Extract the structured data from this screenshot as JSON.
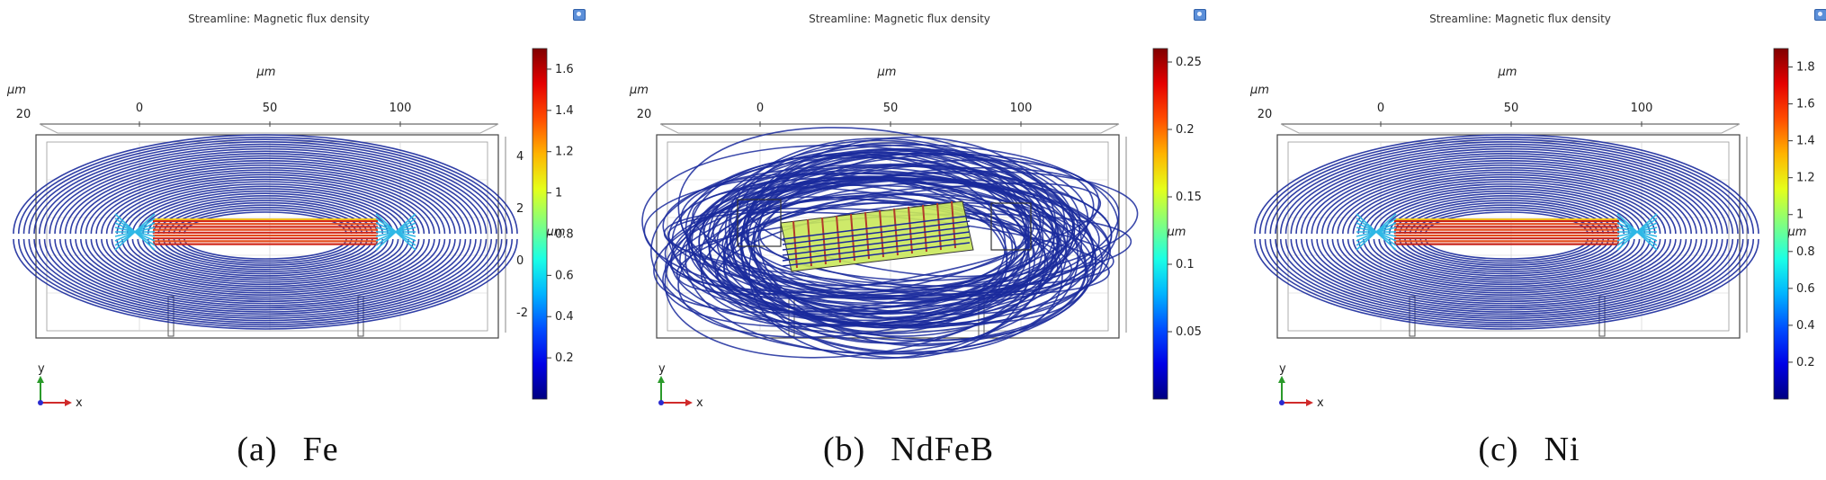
{
  "panels": [
    {
      "id": "a",
      "title": "Streamline: Magnetic flux density",
      "caption_label": "(a)",
      "caption_name": "Fe",
      "axis_unit": "µm",
      "x_ticks": [
        "0",
        "50",
        "100"
      ],
      "corner_tick": "20",
      "y_ticks": [
        "4",
        "2",
        "0",
        "-2"
      ],
      "colorbar": {
        "ticks": [
          "1.6",
          "1.4",
          "1.2",
          "1",
          "0.8",
          "0.6",
          "0.4",
          "0.2"
        ],
        "max": 1.7
      },
      "axes_labels": {
        "y": "y",
        "x": "x"
      }
    },
    {
      "id": "b",
      "title": "Streamline: Magnetic flux density",
      "caption_label": "(b)",
      "caption_name": "NdFeB",
      "axis_unit": "µm",
      "x_ticks": [
        "0",
        "50",
        "100"
      ],
      "corner_tick": "20",
      "y_ticks": [],
      "colorbar": {
        "ticks": [
          "0.25",
          "0.2",
          "0.15",
          "0.1",
          "0.05"
        ],
        "max": 0.26
      },
      "axes_labels": {
        "y": "y",
        "x": "x"
      }
    },
    {
      "id": "c",
      "title": "Streamline: Magnetic flux density",
      "caption_label": "(c)",
      "caption_name": "Ni",
      "axis_unit": "µm",
      "x_ticks": [
        "0",
        "50",
        "100"
      ],
      "corner_tick": "20",
      "y_ticks": [],
      "colorbar": {
        "ticks": [
          "1.8",
          "1.6",
          "1.4",
          "1.2",
          "1",
          "0.8",
          "0.6",
          "0.4",
          "0.2"
        ],
        "max": 1.9
      },
      "axes_labels": {
        "y": "y",
        "x": "x"
      }
    }
  ],
  "colors": {
    "field_line": "#1a2a9c",
    "frame": "#444444",
    "grid": "#cfcfcf"
  }
}
